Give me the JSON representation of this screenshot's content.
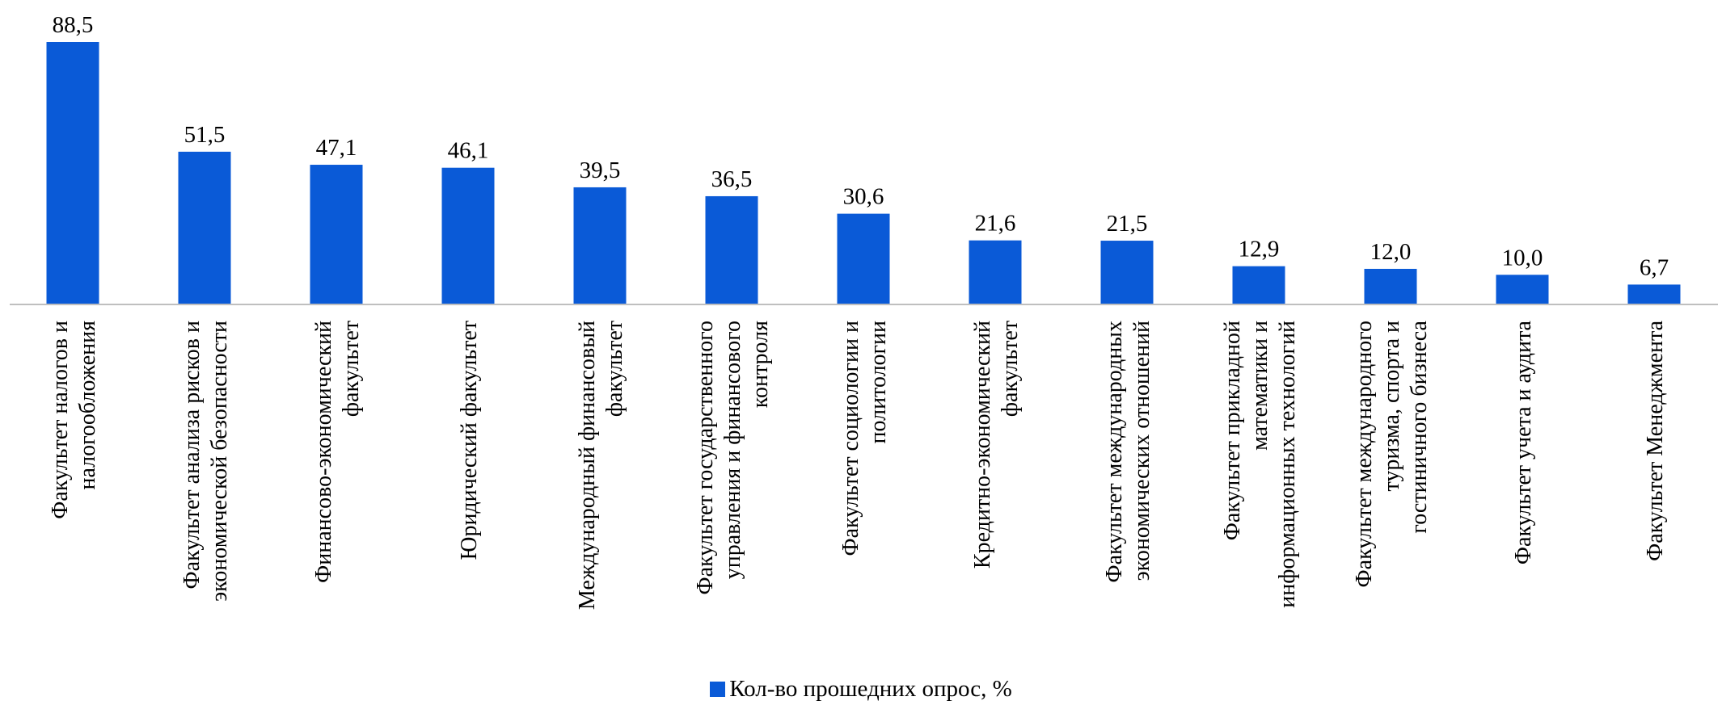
{
  "chart_data": {
    "type": "bar",
    "title": "",
    "xlabel": "",
    "ylabel": "",
    "grid": false,
    "legend_position": "bottom",
    "ylim": [
      0,
      90
    ],
    "bar_color": "#0A5AD7",
    "categories": [
      [
        "Факультет налогов и",
        "налогообложения"
      ],
      [
        "Факультет анализа рисков и",
        "экономической безопасности"
      ],
      [
        "Финансово-экономический",
        "факультет"
      ],
      [
        "Юридический факультет"
      ],
      [
        "Международный финансовый",
        "факультет"
      ],
      [
        "Факультет государственного",
        "управления и финансового",
        "контроля"
      ],
      [
        "Факультет социологии и",
        "политологии"
      ],
      [
        "Кредитно-экономический",
        "факультет"
      ],
      [
        "Факультет международных",
        "экономических отношений"
      ],
      [
        "Факультет прикладной",
        "математики и",
        "информационных технологий"
      ],
      [
        "Факультет международного",
        "туризма, спорта и",
        "гостиничного бизнеса"
      ],
      [
        "Факультет учета и аудита"
      ],
      [
        "Факультет Менеджмента"
      ]
    ],
    "values": [
      88.5,
      51.5,
      47.1,
      46.1,
      39.5,
      36.5,
      30.6,
      21.6,
      21.5,
      12.9,
      12.0,
      10.0,
      6.7
    ],
    "value_labels": [
      "88,5",
      "51,5",
      "47,1",
      "46,1",
      "39,5",
      "36,5",
      "30,6",
      "21,6",
      "21,5",
      "12,9",
      "12,0",
      "10,0",
      "6,7"
    ],
    "series": [
      {
        "name": "Кол-во прошедних опрос, %"
      }
    ]
  }
}
